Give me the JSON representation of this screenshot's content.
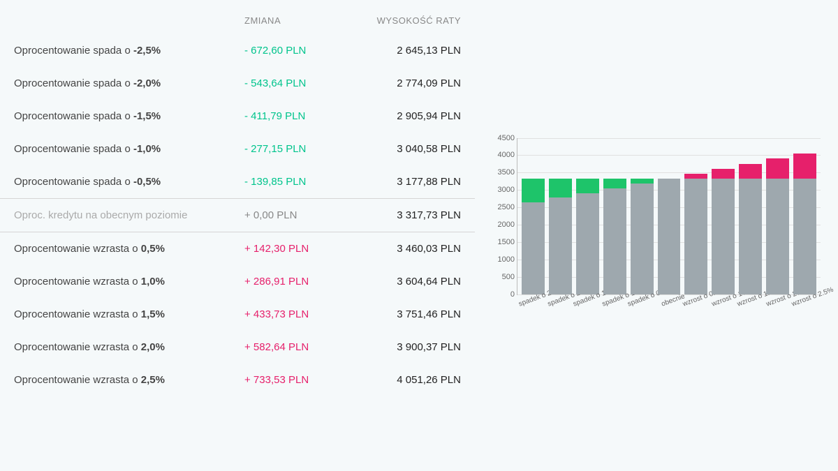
{
  "table": {
    "header_change": "ZMIANA",
    "header_rate": "WYSOKOŚĆ RATY",
    "rows": [
      {
        "desc_prefix": "Oprocentowanie spada o ",
        "desc_bold": "-2,5%",
        "change": "- 672,60 PLN",
        "rate": "2 645,13 PLN",
        "color": "green",
        "muted": false
      },
      {
        "desc_prefix": "Oprocentowanie spada o ",
        "desc_bold": "-2,0%",
        "change": "- 543,64 PLN",
        "rate": "2 774,09 PLN",
        "color": "green",
        "muted": false
      },
      {
        "desc_prefix": "Oprocentowanie spada o ",
        "desc_bold": "-1,5%",
        "change": "- 411,79 PLN",
        "rate": "2 905,94 PLN",
        "color": "green",
        "muted": false
      },
      {
        "desc_prefix": "Oprocentowanie spada o ",
        "desc_bold": "-1,0%",
        "change": "- 277,15 PLN",
        "rate": "3 040,58 PLN",
        "color": "green",
        "muted": false
      },
      {
        "desc_prefix": "Oprocentowanie spada o ",
        "desc_bold": "-0,5%",
        "change": "- 139,85 PLN",
        "rate": "3 177,88 PLN",
        "color": "green",
        "muted": false
      },
      {
        "desc_prefix": "Oproc. kredytu na obecnym poziomie",
        "desc_bold": "",
        "change": "+ 0,00 PLN",
        "rate": "3 317,73 PLN",
        "color": "gray",
        "muted": true
      },
      {
        "desc_prefix": "Oprocentowanie wzrasta o ",
        "desc_bold": "0,5%",
        "change": "+ 142,30 PLN",
        "rate": "3 460,03 PLN",
        "color": "pink",
        "muted": false
      },
      {
        "desc_prefix": "Oprocentowanie wzrasta o ",
        "desc_bold": "1,0%",
        "change": "+ 286,91 PLN",
        "rate": "3 604,64 PLN",
        "color": "pink",
        "muted": false
      },
      {
        "desc_prefix": "Oprocentowanie wzrasta o ",
        "desc_bold": "1,5%",
        "change": "+ 433,73 PLN",
        "rate": "3 751,46 PLN",
        "color": "pink",
        "muted": false
      },
      {
        "desc_prefix": "Oprocentowanie wzrasta o ",
        "desc_bold": "2,0%",
        "change": "+ 582,64 PLN",
        "rate": "3 900,37 PLN",
        "color": "pink",
        "muted": false
      },
      {
        "desc_prefix": "Oprocentowanie wzrasta o ",
        "desc_bold": "2,5%",
        "change": "+ 733,53 PLN",
        "rate": "4 051,26 PLN",
        "color": "pink",
        "muted": false
      }
    ]
  },
  "chart": {
    "type": "stacked-bar",
    "ylim": [
      0,
      4500
    ],
    "ytick_step": 500,
    "yticks": [
      0,
      500,
      1000,
      1500,
      2000,
      2500,
      3000,
      3500,
      4000,
      4500
    ],
    "base_color": "#9ea8ae",
    "green_color": "#1ec46a",
    "pink_color": "#e6206b",
    "grid_color": "#e0e0e0",
    "background_color": "#f5f9fa",
    "axis_color": "#bbbbbb",
    "label_fontsize": 10,
    "tick_fontsize": 11,
    "bars": [
      {
        "label": "spadek o 2.5%",
        "base": 2645.13,
        "delta": 672.6,
        "delta_color": "green"
      },
      {
        "label": "spadek o 2%",
        "base": 2774.09,
        "delta": 543.64,
        "delta_color": "green"
      },
      {
        "label": "spadek o 1.5%",
        "base": 2905.94,
        "delta": 411.79,
        "delta_color": "green"
      },
      {
        "label": "spadek o 1%",
        "base": 3040.58,
        "delta": 277.15,
        "delta_color": "green"
      },
      {
        "label": "spadek o 0.5%",
        "base": 3177.88,
        "delta": 139.85,
        "delta_color": "green"
      },
      {
        "label": "obecnie",
        "base": 3317.73,
        "delta": 0,
        "delta_color": "none"
      },
      {
        "label": "wzrost o 0.5%",
        "base": 3317.73,
        "delta": 142.3,
        "delta_color": "pink"
      },
      {
        "label": "wzrost o 1%",
        "base": 3317.73,
        "delta": 286.91,
        "delta_color": "pink"
      },
      {
        "label": "wzrost o 1.5%",
        "base": 3317.73,
        "delta": 433.73,
        "delta_color": "pink"
      },
      {
        "label": "wzrost o 2%",
        "base": 3317.73,
        "delta": 582.64,
        "delta_color": "pink"
      },
      {
        "label": "wzrost o 2.5%",
        "base": 3317.73,
        "delta": 733.53,
        "delta_color": "pink"
      }
    ]
  }
}
